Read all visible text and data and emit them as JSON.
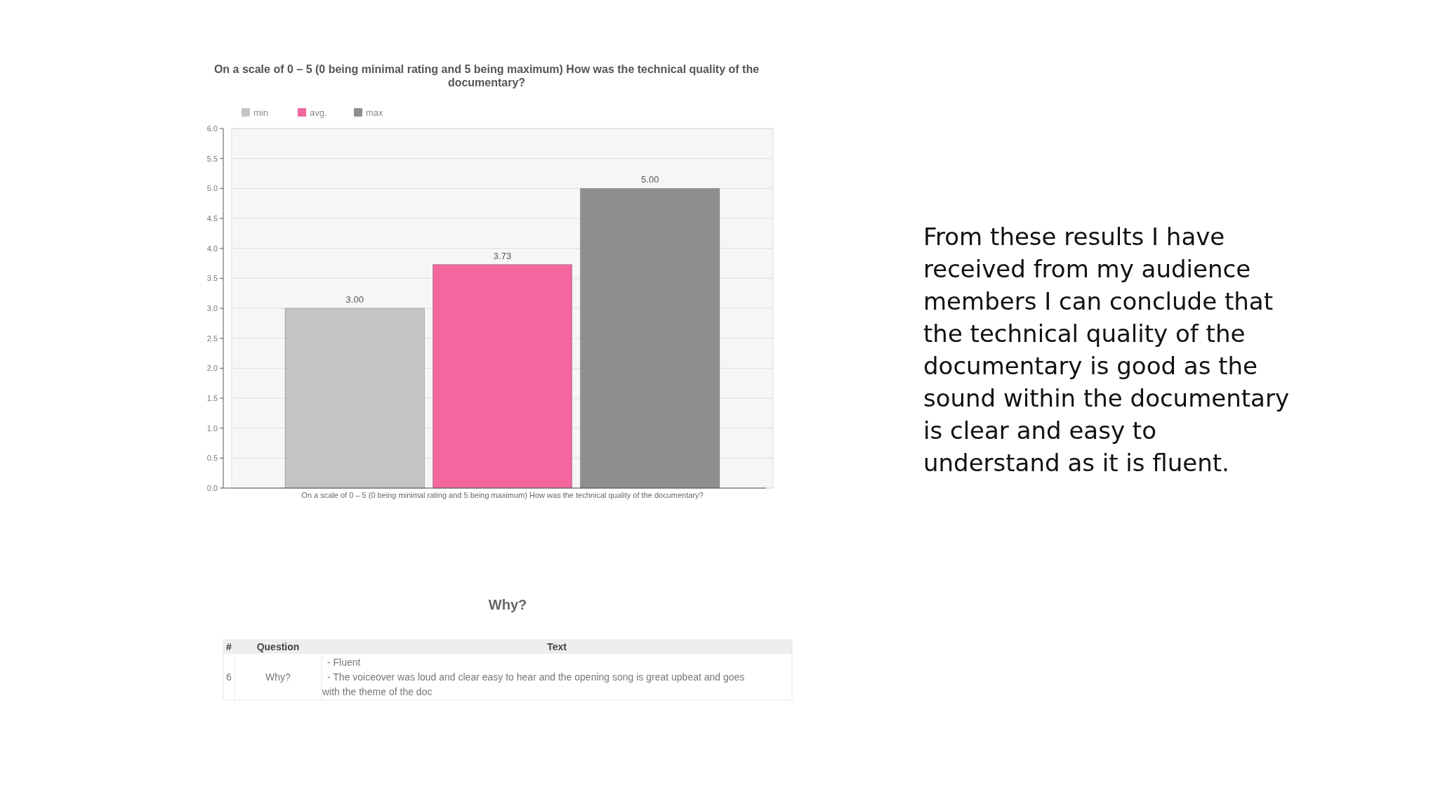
{
  "chart_data": {
    "type": "bar",
    "title": "On a scale of 0 – 5 (0 being minimal rating and 5 being maximum) How was the technical quality of the documentary?",
    "categories": [
      "On a scale of 0 – 5 (0 being minimal rating and 5 being maximum) How was the technical quality of the documentary?"
    ],
    "series": [
      {
        "name": "min",
        "color": "#c4c4c4",
        "values": [
          3.0
        ]
      },
      {
        "name": "avg.",
        "color": "#f2679d",
        "values": [
          3.73
        ]
      },
      {
        "name": "max",
        "color": "#8e8e8e",
        "values": [
          5.0
        ]
      }
    ],
    "ylim": [
      0,
      6
    ],
    "yticks": [
      {
        "value": 0,
        "label": "0.0"
      },
      {
        "value": 0.5,
        "label": "0.5"
      },
      {
        "value": 1,
        "label": "1.0"
      },
      {
        "value": 1.5,
        "label": "1.5"
      },
      {
        "value": 2,
        "label": "2.0"
      },
      {
        "value": 2.5,
        "label": "2.5"
      },
      {
        "value": 3,
        "label": "3.0"
      },
      {
        "value": 3.5,
        "label": "3.5"
      },
      {
        "value": 4,
        "label": "4.0"
      },
      {
        "value": 4.5,
        "label": "4.5"
      },
      {
        "value": 5,
        "label": "5.0"
      },
      {
        "value": 5.5,
        "label": "5.5"
      },
      {
        "value": 6,
        "label": "6.0"
      }
    ],
    "value_labels": [
      "3.00",
      "3.73",
      "5.00"
    ],
    "grid": "y",
    "legend": "top left",
    "annotations": [
      "Why?",
      "#",
      "Question",
      "Text",
      "6",
      "Why?",
      "- Fluent",
      "- The voiceover was loud and clear easy to hear and the opening song is great upbeat and goes with the theme of the doc",
      "From these results I have received from my audience members I can conclude that the technical quality of the documentary is good as the sound within the documentary is clear and easy to understand as it is fluent."
    ]
  }
}
